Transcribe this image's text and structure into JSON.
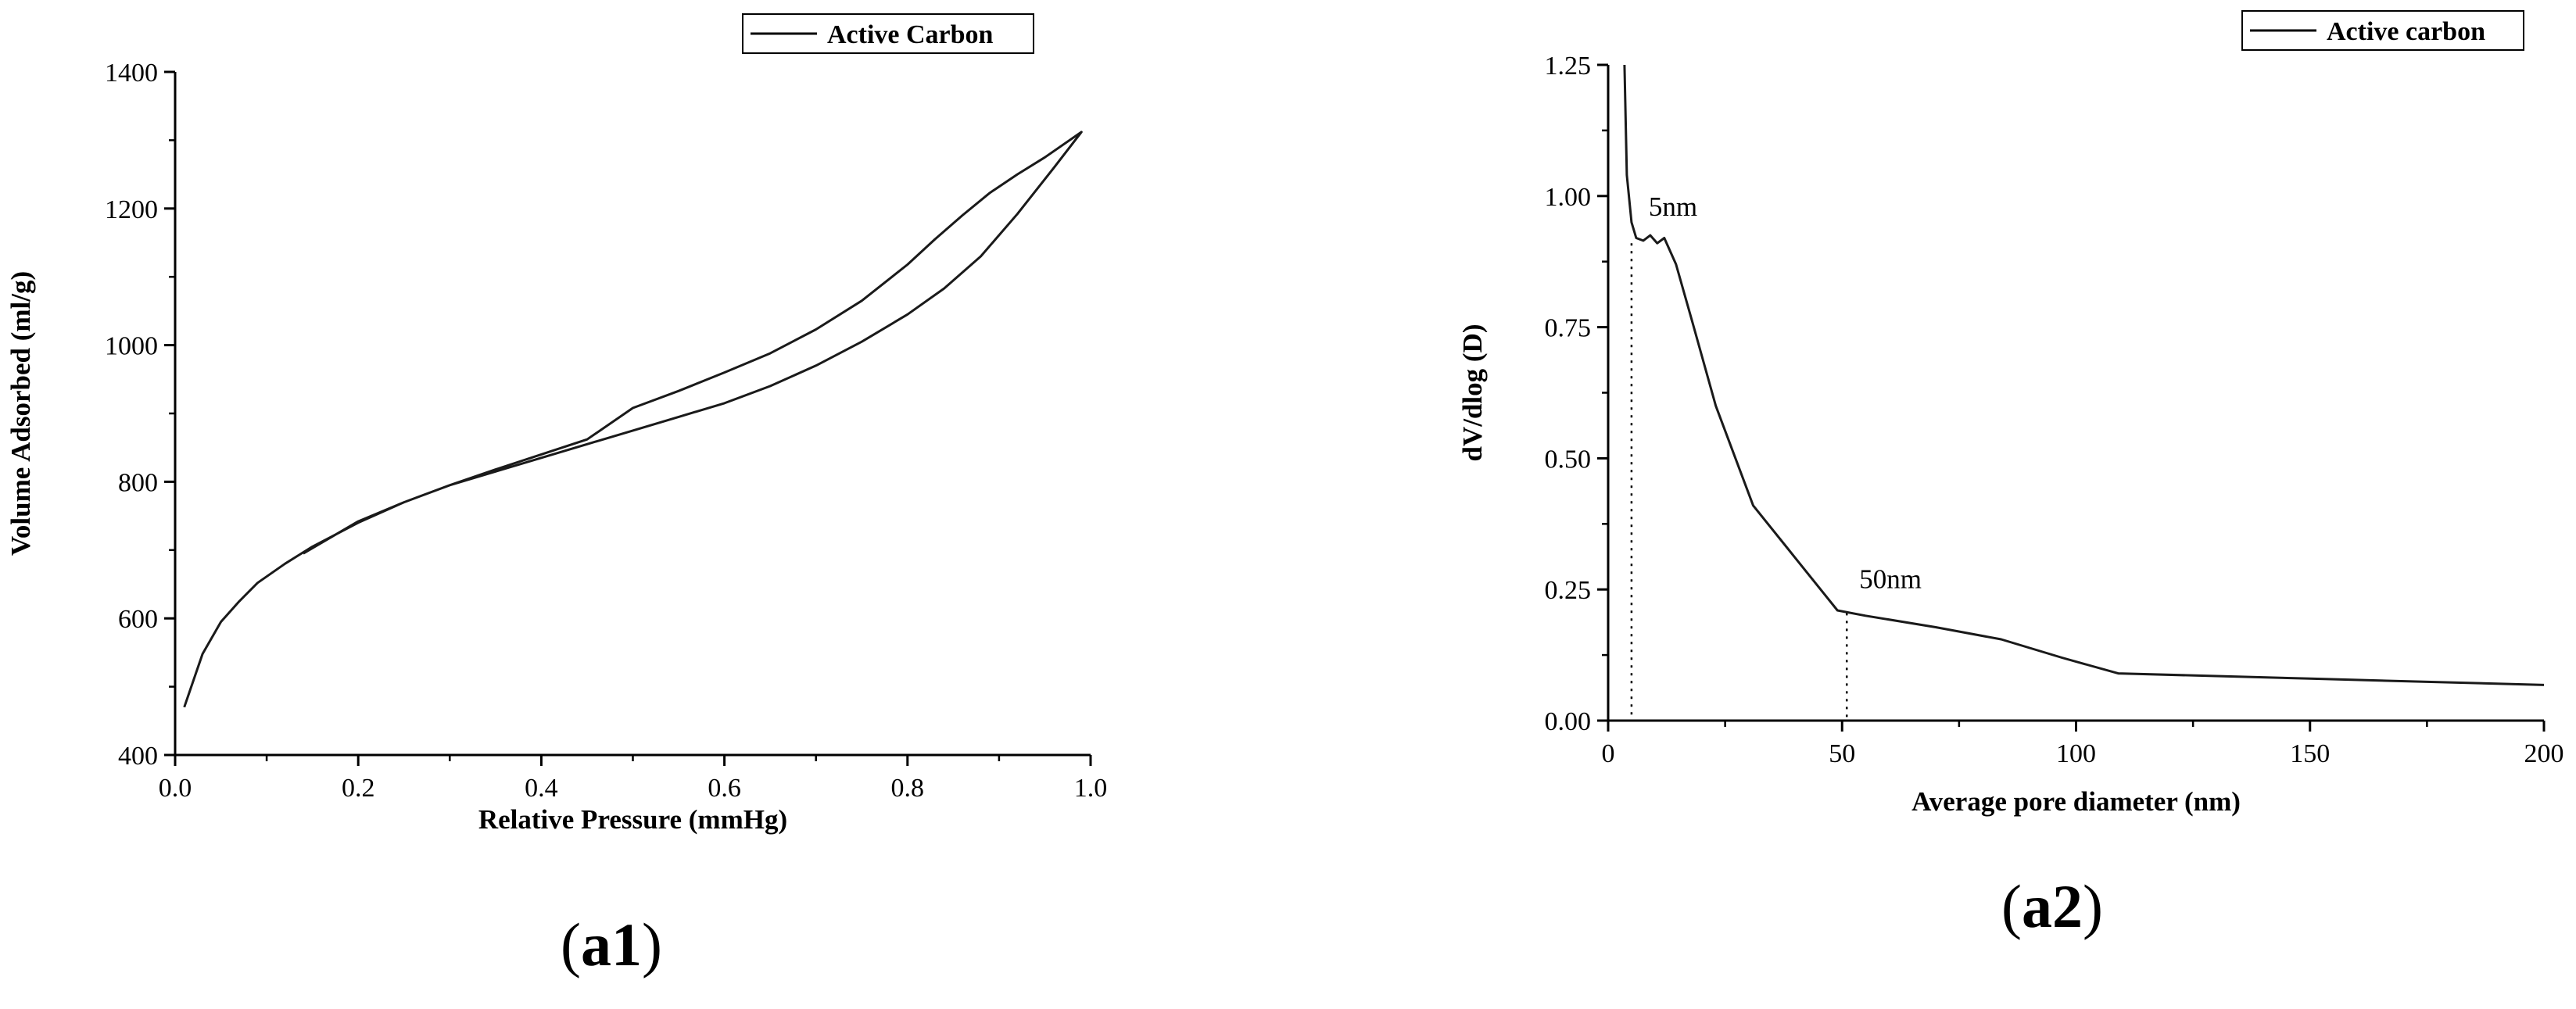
{
  "chart_data": [
    {
      "type": "line",
      "panel_label": {
        "open": "(",
        "id": "a1",
        "close": ")"
      },
      "title": "",
      "xlabel": "Relative Pressure (mmHg)",
      "ylabel": "Volume Adsorbed (ml/g)",
      "xlim": [
        0.0,
        1.0
      ],
      "ylim": [
        400,
        1400
      ],
      "xticks": [
        0.0,
        0.2,
        0.4,
        0.6,
        0.8,
        1.0
      ],
      "xtick_labels": [
        "0.0",
        "0.2",
        "0.4",
        "0.6",
        "0.8",
        "1.0"
      ],
      "yticks": [
        400,
        600,
        800,
        1000,
        1200,
        1400
      ],
      "ytick_labels": [
        "400",
        "600",
        "800",
        "1000",
        "1200",
        "1400"
      ],
      "legend": {
        "entries": [
          "Active Carbon"
        ],
        "position": "top-right"
      },
      "grid": false,
      "series": [
        {
          "name": "Active Carbon",
          "x": [
            0.01,
            0.03,
            0.05,
            0.07,
            0.09,
            0.12,
            0.15,
            0.2,
            0.25,
            0.3,
            0.35,
            0.4,
            0.45,
            0.5,
            0.55,
            0.6,
            0.65,
            0.7,
            0.75,
            0.8,
            0.83,
            0.86,
            0.89,
            0.92,
            0.95,
            0.99,
            0.96,
            0.92,
            0.88,
            0.84,
            0.8,
            0.75,
            0.7,
            0.65,
            0.6,
            0.55,
            0.5,
            0.45,
            0.4,
            0.35,
            0.3,
            0.25,
            0.2,
            0.14
          ],
          "y": [
            470,
            548,
            595,
            625,
            652,
            680,
            705,
            740,
            770,
            795,
            818,
            840,
            862,
            908,
            933,
            960,
            988,
            1023,
            1065,
            1118,
            1155,
            1190,
            1223,
            1250,
            1275,
            1312,
            1260,
            1192,
            1130,
            1083,
            1045,
            1005,
            970,
            940,
            915,
            895,
            875,
            855,
            835,
            815,
            795,
            770,
            742,
            695
          ]
        }
      ]
    },
    {
      "type": "line",
      "panel_label": {
        "open": "(",
        "id": "a2",
        "close": ")"
      },
      "title": "",
      "xlabel": "Average pore diameter (nm)",
      "ylabel": "dV/dlog (D)",
      "xlim": [
        0,
        200
      ],
      "ylim": [
        0.0,
        1.25
      ],
      "xticks": [
        0,
        50,
        100,
        150,
        200
      ],
      "xtick_labels": [
        "0",
        "50",
        "100",
        "150",
        "200"
      ],
      "yticks": [
        0.0,
        0.25,
        0.5,
        0.75,
        1.0,
        1.25
      ],
      "ytick_labels": [
        "0.00",
        "0.25",
        "0.50",
        "0.75",
        "1.00",
        "1.25"
      ],
      "legend": {
        "entries": [
          "Active carbon"
        ],
        "position": "top-right"
      },
      "grid": false,
      "annotations": [
        {
          "text": "5nm",
          "x": 5,
          "y": 0.91
        },
        {
          "text": "50nm",
          "x": 51,
          "y": 0.205
        }
      ],
      "series": [
        {
          "name": "Active carbon",
          "x": [
            3.5,
            4,
            5,
            6,
            7.5,
            9,
            10.5,
            12,
            14.5,
            18,
            23,
            31,
            40,
            49,
            55,
            70,
            84,
            97,
            109,
            150,
            200
          ],
          "y": [
            1.25,
            1.04,
            0.95,
            0.92,
            0.915,
            0.925,
            0.91,
            0.92,
            0.87,
            0.76,
            0.6,
            0.41,
            0.31,
            0.21,
            0.2,
            0.178,
            0.155,
            0.12,
            0.09,
            0.08,
            0.068
          ]
        }
      ]
    }
  ]
}
